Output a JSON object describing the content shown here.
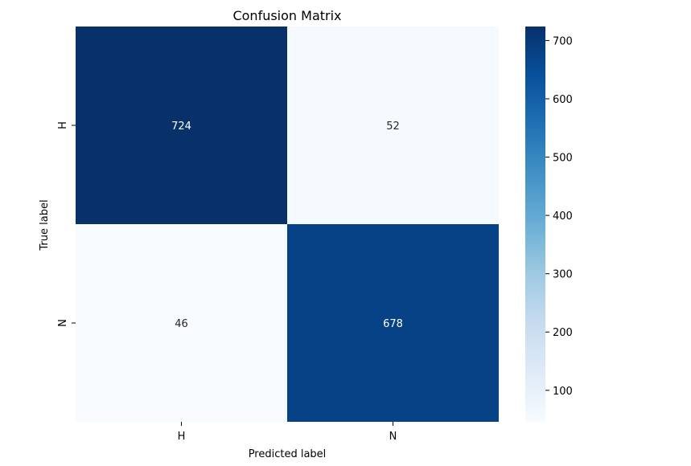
{
  "chart_data": {
    "type": "heatmap",
    "title": "Confusion Matrix",
    "xlabel": "Predicted label",
    "ylabel": "True label",
    "x_categories": [
      "H",
      "N"
    ],
    "y_categories": [
      "H",
      "N"
    ],
    "values": [
      [
        724,
        52
      ],
      [
        46,
        678
      ]
    ],
    "colormap": "Blues",
    "colorbar": {
      "vmin": 46,
      "vmax": 724,
      "ticks": [
        100,
        200,
        300,
        400,
        500,
        600,
        700
      ]
    },
    "colors": {
      "low": "#f7fbff",
      "high": "#08306b"
    }
  }
}
